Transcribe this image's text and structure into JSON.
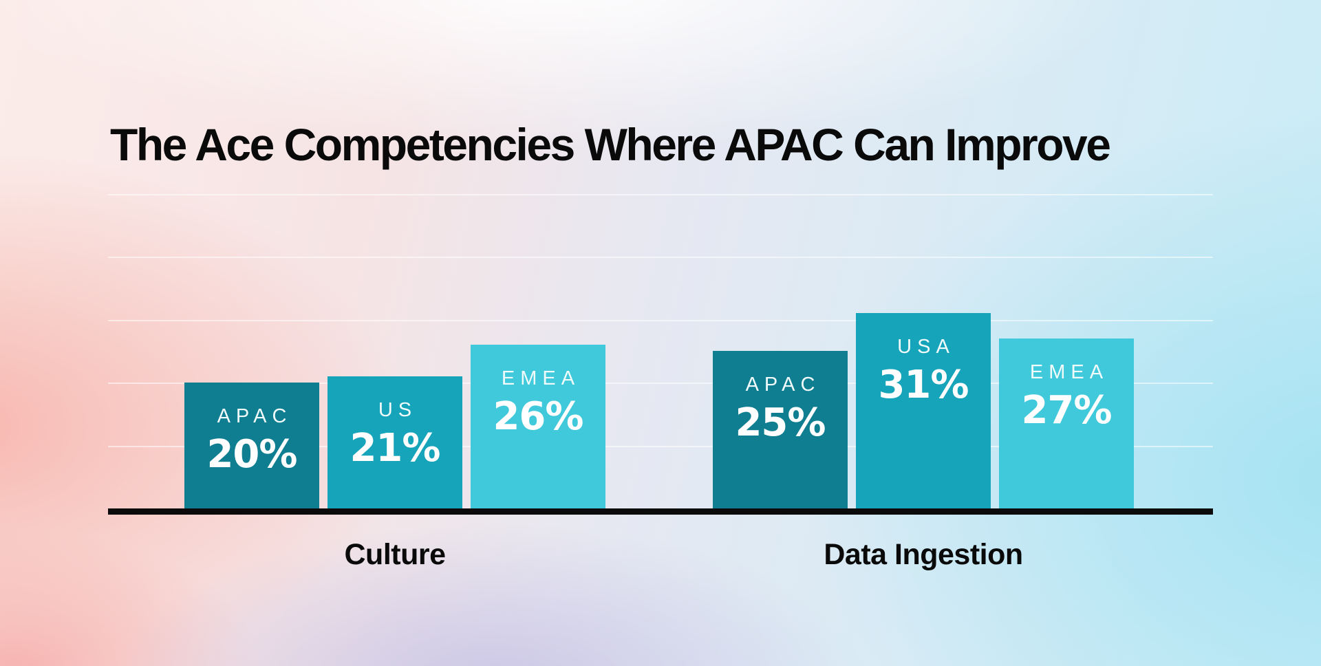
{
  "page": {
    "title": "The Ace Competencies Where APAC Can Improve"
  },
  "chart_data": {
    "type": "bar",
    "title": "The Ace Competencies Where APAC Can Improve",
    "unit": "percent",
    "value_suffix": "%",
    "xlabel": "",
    "ylabel": "",
    "axis": {
      "y_min": 0,
      "y_max": 50,
      "gridline_step": 10,
      "gridlines_visible": true,
      "y_tick_labels_visible": false,
      "baseline_color": "#0b0b0b",
      "gridline_color": "rgba(255,255,255,0.55)"
    },
    "legend": null,
    "groups": [
      {
        "label": "Culture",
        "bars": [
          {
            "region": "APAC",
            "value": 20,
            "display": "20%",
            "color": "#0f7e91"
          },
          {
            "region": "US",
            "value": 21,
            "display": "21%",
            "color": "#16a4ba"
          },
          {
            "region": "EMEA",
            "value": 26,
            "display": "26%",
            "color": "#3fc9db"
          }
        ]
      },
      {
        "label": "Data Ingestion",
        "bars": [
          {
            "region": "APAC",
            "value": 25,
            "display": "25%",
            "color": "#0f7e91"
          },
          {
            "region": "USA",
            "value": 31,
            "display": "31%",
            "color": "#16a4ba"
          },
          {
            "region": "EMEA",
            "value": 27,
            "display": "27%",
            "color": "#3fc9db"
          }
        ]
      }
    ],
    "colors": {
      "apac_series": "#0f7e91",
      "us_series": "#16a4ba",
      "emea_series": "#3fc9db",
      "title_text": "#0a0a0a",
      "bar_label_text": "#ffffff"
    }
  }
}
